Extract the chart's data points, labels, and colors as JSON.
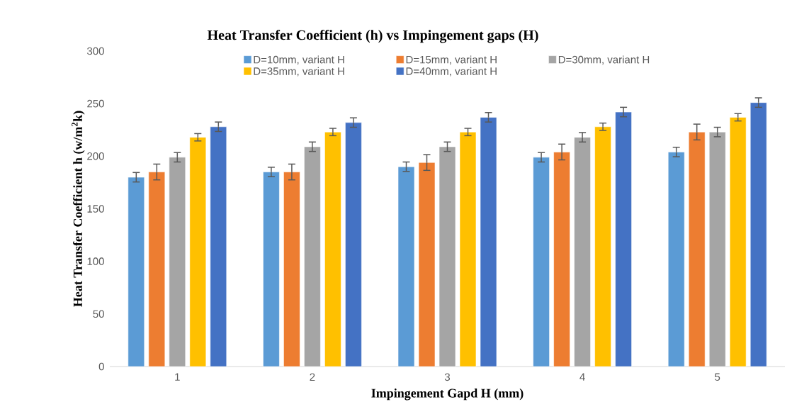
{
  "chart_data": {
    "type": "bar",
    "title": "Heat Transfer Coefficient (h) vs Impingement gaps (H)",
    "xlabel": "Impingement  Gapd H (mm)",
    "ylabel": "Heat Transfer Coefficient h (w/m$^{2}$k)",
    "categories": [
      "1",
      "2",
      "3",
      "4",
      "5"
    ],
    "series": [
      {
        "name": "D=10mm, variant H",
        "color": "#5b9bd5",
        "values": [
          180,
          185,
          190,
          199,
          204
        ],
        "errors": [
          4.5,
          4.5,
          4.5,
          4.5,
          4.5
        ]
      },
      {
        "name": "D=15mm, variant H",
        "color": "#ed7d31",
        "values": [
          185,
          185,
          194,
          204,
          223
        ],
        "errors": [
          7.5,
          7.5,
          7.5,
          7.5,
          7.5
        ]
      },
      {
        "name": "D=30mm, variant H",
        "color": "#a5a5a5",
        "values": [
          199,
          209,
          209,
          218,
          223
        ],
        "errors": [
          4.5,
          4.5,
          4.5,
          4.5,
          4.5
        ]
      },
      {
        "name": "D=35mm, variant H",
        "color": "#ffc000",
        "values": [
          218,
          223,
          223,
          228,
          237
        ],
        "errors": [
          3.5,
          3.5,
          3.5,
          3.5,
          3.5
        ]
      },
      {
        "name": "D=40mm, variant H",
        "color": "#4472c4",
        "values": [
          228,
          232,
          237,
          242,
          251
        ],
        "errors": [
          4.5,
          4.5,
          4.5,
          4.5,
          4.5
        ]
      }
    ],
    "ylim": [
      0,
      300
    ],
    "yticks": [
      0,
      50,
      100,
      150,
      200,
      250,
      300
    ],
    "legend": "top"
  }
}
